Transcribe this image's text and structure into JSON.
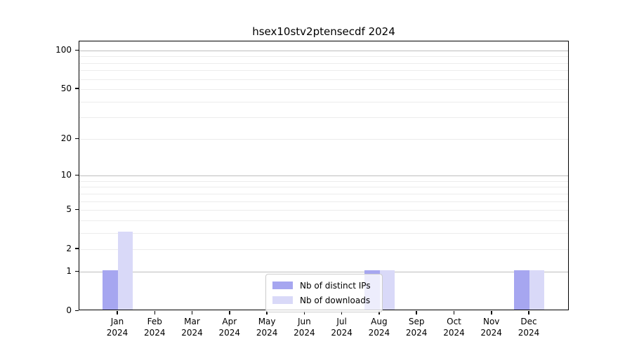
{
  "title": "hsex10stv2ptensecdf 2024",
  "legend": {
    "items": [
      {
        "label": "Nb of distinct IPs",
        "color": "#a6a6f0"
      },
      {
        "label": "Nb of downloads",
        "color": "#d9d9f8"
      }
    ]
  },
  "chart_data": {
    "type": "bar",
    "title": "hsex10stv2ptensecdf 2024",
    "categories": [
      "Jan",
      "Feb",
      "Mar",
      "Apr",
      "May",
      "Jun",
      "Jul",
      "Aug",
      "Sep",
      "Oct",
      "Nov",
      "Dec"
    ],
    "year": "2024",
    "series": [
      {
        "name": "Nb of distinct IPs",
        "color": "#a6a6f0",
        "values": [
          1,
          0,
          0,
          0,
          0,
          0,
          0,
          1,
          0,
          0,
          0,
          1
        ]
      },
      {
        "name": "Nb of downloads",
        "color": "#d9d9f8",
        "values": [
          3,
          0,
          0,
          0,
          0,
          0,
          0,
          1,
          0,
          0,
          0,
          1
        ]
      }
    ],
    "yscale": "log1p",
    "ylim": [
      0,
      118
    ],
    "yticks": [
      0,
      1,
      2,
      5,
      10,
      20,
      50,
      100
    ],
    "major_gridlines": [
      1,
      10,
      100
    ],
    "minor_gridlines": [
      2,
      3,
      4,
      5,
      6,
      7,
      8,
      9,
      20,
      30,
      40,
      50,
      60,
      70,
      80,
      90
    ],
    "grid": "horizontal",
    "legend_position": "lower-center",
    "xlabel": "",
    "ylabel": ""
  }
}
